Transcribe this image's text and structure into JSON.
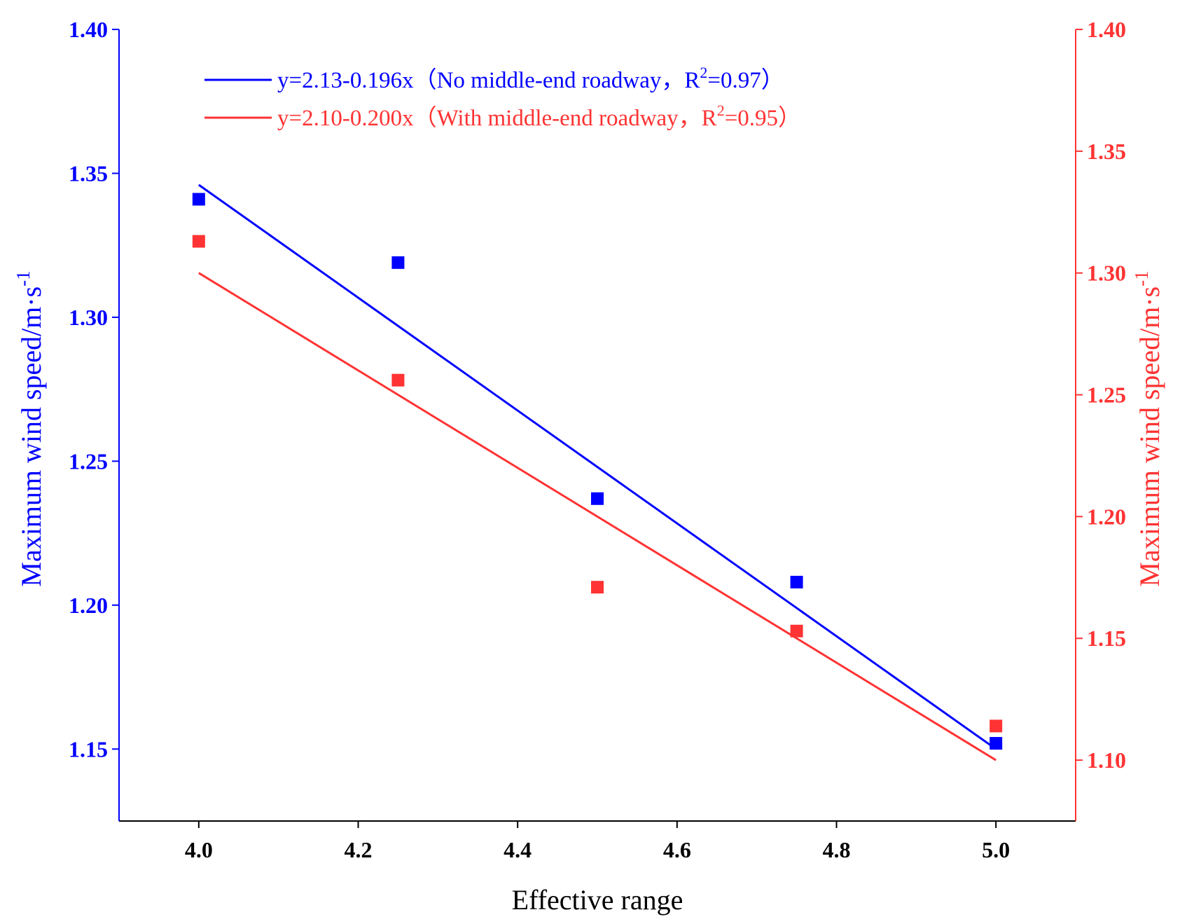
{
  "chart_data": {
    "type": "scatter",
    "title": "",
    "xlabel": "Effective range",
    "xlim": [
      3.9,
      5.1
    ],
    "xticks": [
      4.0,
      4.2,
      4.4,
      4.6,
      4.8,
      5.0
    ],
    "xtick_labels": [
      "4.0",
      "4.2",
      "4.4",
      "4.6",
      "4.8",
      "5.0"
    ],
    "y_left": {
      "label": "Maximum wind speed/m·s",
      "label_sup": "-1",
      "ylim": [
        1.125,
        1.4
      ],
      "ticks": [
        1.15,
        1.2,
        1.25,
        1.3,
        1.35,
        1.4
      ],
      "tick_labels": [
        "1.15",
        "1.20",
        "1.25",
        "1.30",
        "1.35",
        "1.40"
      ],
      "color": "#0000ff"
    },
    "y_right": {
      "label": "Maximum wind speed/m·s",
      "label_sup": "-1",
      "ylim": [
        1.075,
        1.4
      ],
      "ticks": [
        1.1,
        1.15,
        1.2,
        1.25,
        1.3,
        1.35,
        1.4
      ],
      "tick_labels": [
        "1.10",
        "1.15",
        "1.20",
        "1.25",
        "1.30",
        "1.35",
        "1.40"
      ],
      "color": "#ff3333"
    },
    "series": [
      {
        "name": "No middle-end roadway",
        "axis": "left",
        "color": "#0000ff",
        "x": [
          4.0,
          4.25,
          4.5,
          4.75,
          5.0
        ],
        "y": [
          1.341,
          1.319,
          1.237,
          1.208,
          1.152
        ],
        "fit": {
          "intercept": 2.13,
          "slope": -0.196,
          "x_range": [
            4.0,
            5.0
          ]
        },
        "legend_label": {
          "pre": "y=2.13-0.196x（No middle-end roadway，R",
          "sup": "2",
          "post": "=0.97）"
        }
      },
      {
        "name": "With middle-end roadway",
        "axis": "right",
        "color": "#ff3333",
        "x": [
          4.0,
          4.25,
          4.5,
          4.75,
          5.0
        ],
        "y": [
          1.313,
          1.256,
          1.171,
          1.153,
          1.114
        ],
        "fit": {
          "intercept": 2.1,
          "slope": -0.2,
          "x_range": [
            4.0,
            5.0
          ]
        },
        "legend_label": {
          "pre": "y=2.10-0.200x（With middle-end roadway，R",
          "sup": "2",
          "post": "=0.95）"
        }
      }
    ],
    "legend_position": "top-left"
  }
}
